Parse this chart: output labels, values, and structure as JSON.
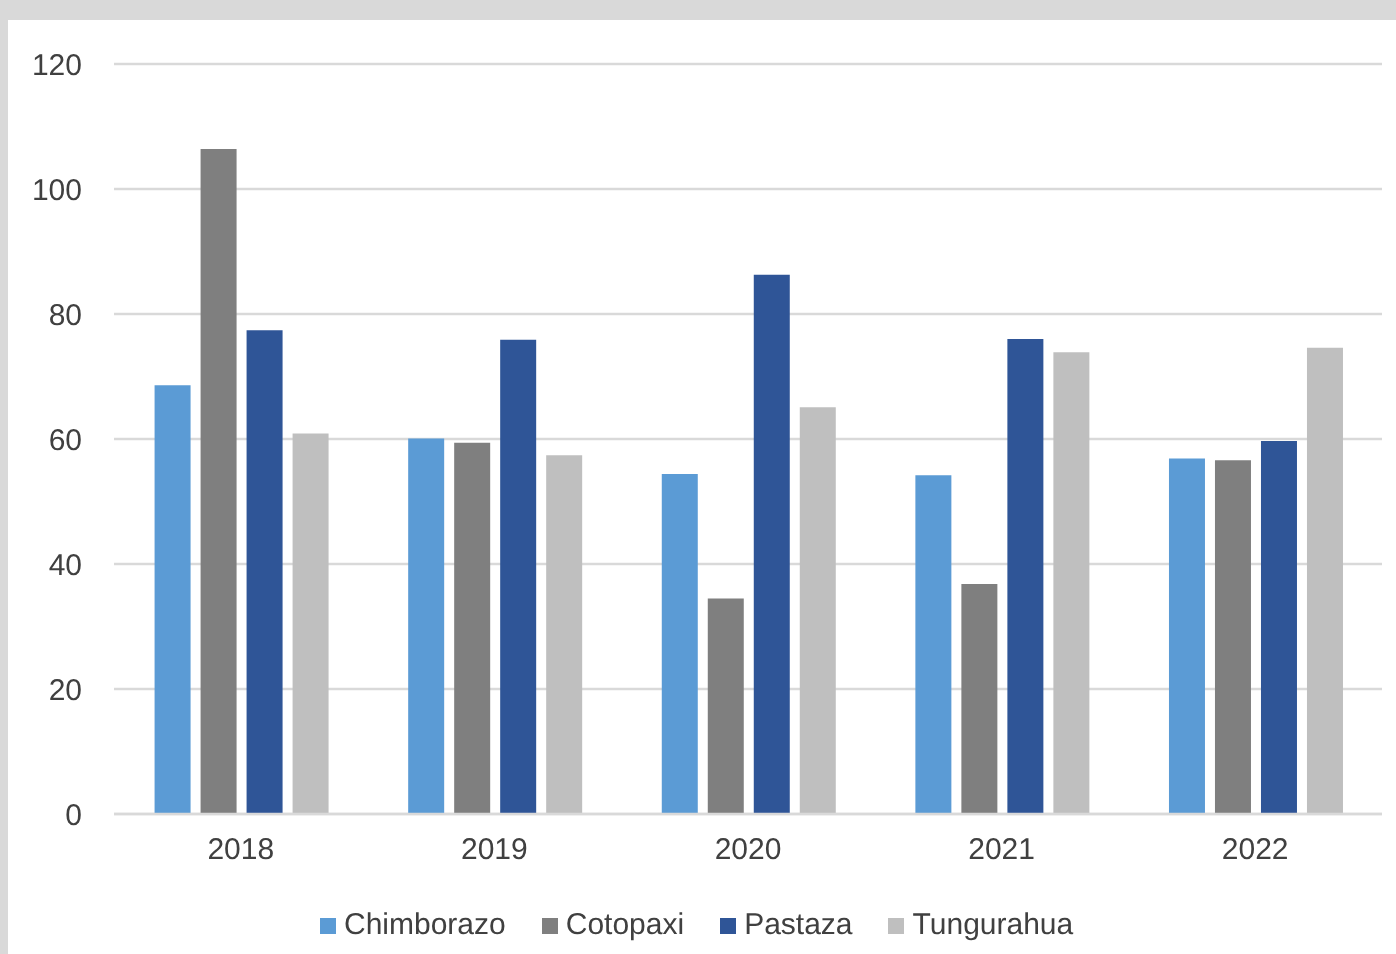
{
  "chart_data": {
    "type": "bar",
    "categories": [
      "2018",
      "2019",
      "2020",
      "2021",
      "2022"
    ],
    "series": [
      {
        "name": "Chimborazo",
        "color": "#5b9bd5",
        "values": [
          68.6,
          60.1,
          54.4,
          54.2,
          56.9
        ]
      },
      {
        "name": "Cotopaxi",
        "color": "#7f7f7f",
        "values": [
          106.4,
          59.4,
          34.5,
          36.8,
          56.6
        ]
      },
      {
        "name": "Pastaza",
        "color": "#2f5597",
        "values": [
          77.4,
          75.9,
          86.3,
          76.0,
          59.7
        ]
      },
      {
        "name": "Tungurahua",
        "color": "#bfbfbf",
        "values": [
          60.9,
          57.4,
          65.1,
          73.9,
          74.6
        ]
      }
    ],
    "ylim": [
      0,
      120
    ],
    "yticks": [
      0,
      20,
      40,
      60,
      80,
      100,
      120
    ],
    "grid": "y",
    "legend": "bottom"
  }
}
